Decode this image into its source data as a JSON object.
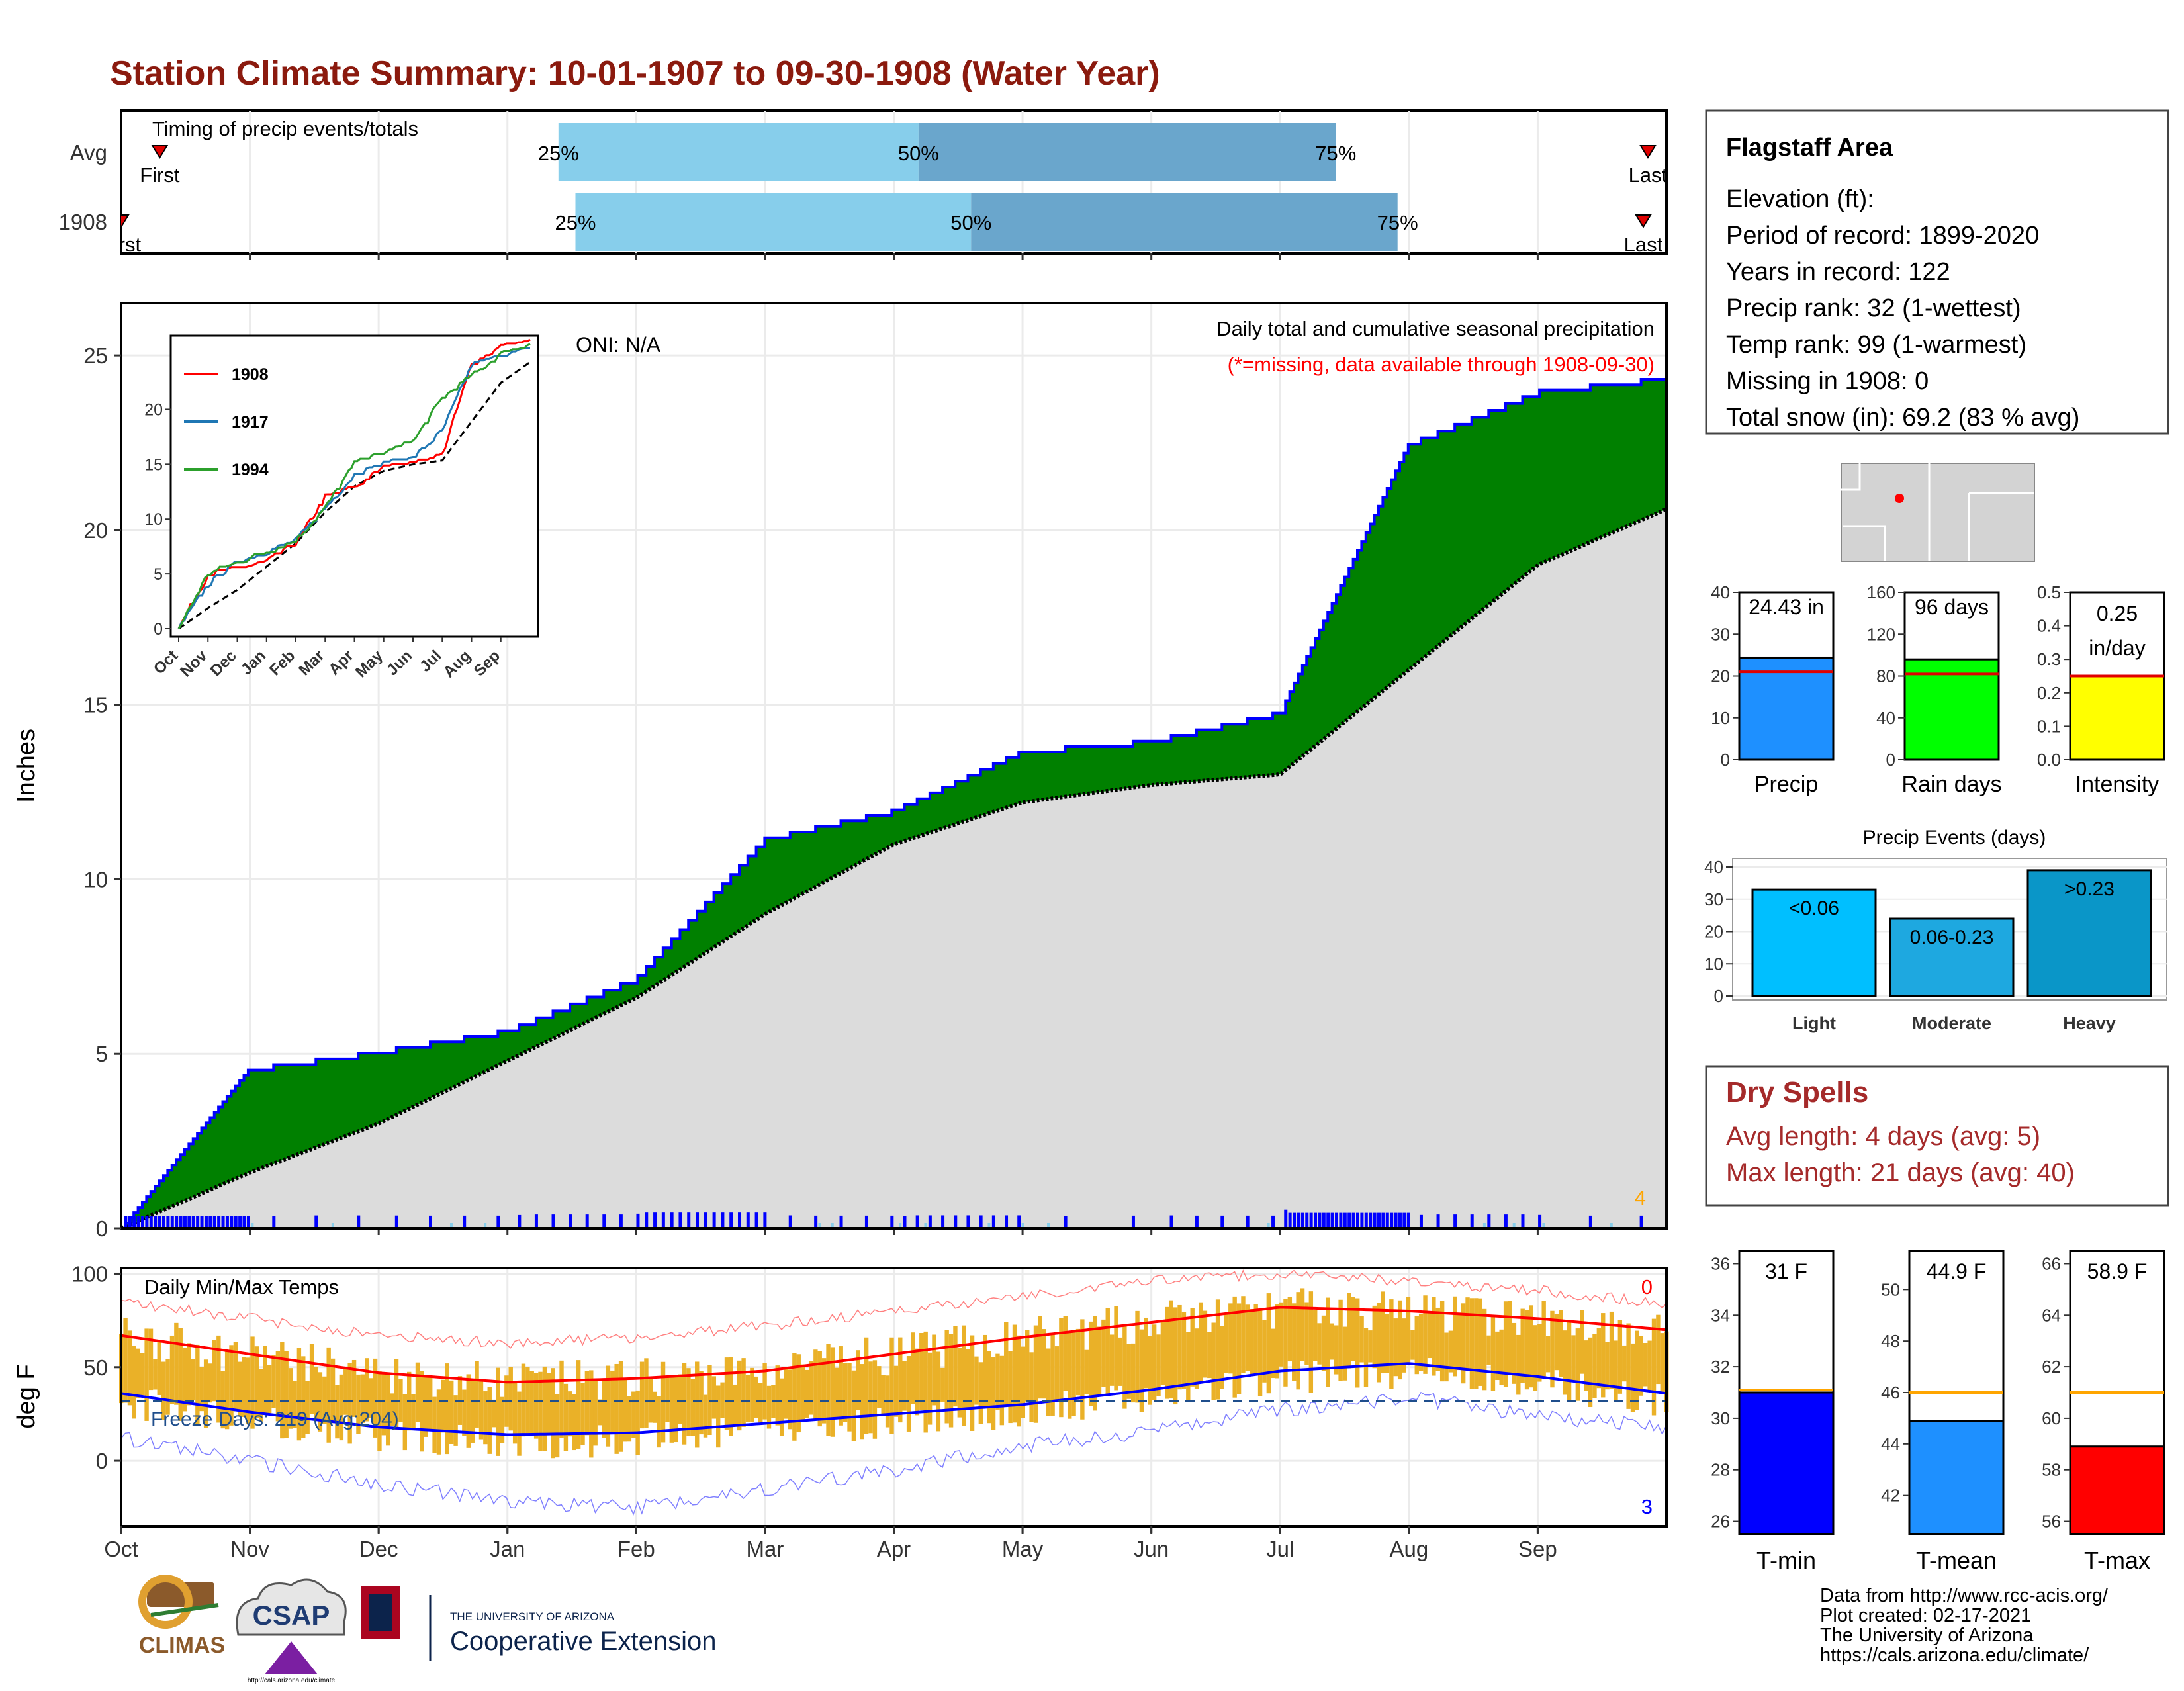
{
  "title": "Station Climate Summary: 10-01-1907 to 09-30-1908 (Water Year)",
  "colors": {
    "title": "#8b1a0e",
    "green": "#008000",
    "blue_line": "#0000ff",
    "grey_fill": "#dcdcdc",
    "bar_light": "#87ceeb",
    "bar_dark": "#6aa6cc",
    "gold": "#eab128",
    "red": "#ff0000",
    "dry_spells": "#a52a2a"
  },
  "timing_panel": {
    "label": "Timing of precip events/totals",
    "rows": [
      {
        "name": "Avg",
        "first_label": "First",
        "last_label": "Last",
        "q25": "25%",
        "q50": "50%",
        "q75": "75%",
        "first_frac": 0.025,
        "last_frac": 0.988,
        "q25_frac": 0.283,
        "q50_frac": 0.516,
        "q75_frac": 0.786
      },
      {
        "name": "1908",
        "first_label": "First",
        "last_label": "Last",
        "q25": "25%",
        "q50": "50%",
        "q75": "75%",
        "first_frac": 0.0,
        "last_frac": 0.985,
        "q25_frac": 0.294,
        "q50_frac": 0.55,
        "q75_frac": 0.826
      }
    ]
  },
  "precip_panel": {
    "title": "Daily total and cumulative seasonal precipitation",
    "subtitle": "(*=missing, data available through 1908-09-30)",
    "oni": "ONI: N/A",
    "ylabel": "Inches",
    "yticks": [
      "0",
      "5",
      "10",
      "15",
      "20",
      "25"
    ],
    "corner_count": "4"
  },
  "inset": {
    "legend": [
      "1908",
      "1917",
      "1994"
    ],
    "yticks": [
      "0",
      "5",
      "10",
      "15",
      "20"
    ],
    "xticks": [
      "Oct",
      "Nov",
      "Dec",
      "Jan",
      "Feb",
      "Mar",
      "Apr",
      "May",
      "Jun",
      "Jul",
      "Aug",
      "Sep"
    ]
  },
  "temp_panel": {
    "label": "Daily Min/Max Temps",
    "freeze": "Freeze Days: 219 (Avg:204)",
    "ylabel": "deg F",
    "yticks": [
      "0",
      "50",
      "100"
    ],
    "count_top": "0",
    "count_bottom": "3"
  },
  "months": [
    "Oct",
    "Nov",
    "Dec",
    "Jan",
    "Feb",
    "Mar",
    "Apr",
    "May",
    "Jun",
    "Jul",
    "Aug",
    "Sep"
  ],
  "station": {
    "name": "Flagstaff Area",
    "lines": [
      "Elevation (ft):",
      "Period of record: 1899-2020",
      "Years in record: 122",
      "Precip rank: 32 (1-wettest)",
      "Temp rank: 99 (1-warmest)",
      "Missing in 1908: 0",
      "Total snow (in): 69.2 (83 % avg)"
    ]
  },
  "summary_bars": [
    {
      "label": "Precip",
      "value_text": "24.43 in",
      "value": 24.43,
      "avg": 21,
      "ymax": 40,
      "yticks": [
        "0",
        "10",
        "20",
        "30",
        "40"
      ],
      "color": "#1e90ff"
    },
    {
      "label": "Rain days",
      "value_text": "96 days",
      "value": 96,
      "avg": 82,
      "ymax": 160,
      "yticks": [
        "0",
        "40",
        "80",
        "120",
        "160"
      ],
      "color": "#00ff00"
    },
    {
      "label": "Intensity",
      "value_text": "0.25",
      "value_text2": "in/day",
      "value": 0.25,
      "avg": 0.25,
      "ymax": 0.5,
      "yticks": [
        "0.0",
        "0.1",
        "0.2",
        "0.3",
        "0.4",
        "0.5"
      ],
      "color": "#ffff00"
    }
  ],
  "events": {
    "title": "Precip Events (days)",
    "yticks": [
      "0",
      "10",
      "20",
      "30",
      "40"
    ],
    "bars": [
      {
        "cat": "Light",
        "label": "<0.06",
        "value": 33,
        "color": "#00bfff"
      },
      {
        "cat": "Moderate",
        "label": "0.06-0.23",
        "value": 24,
        "color": "#1ea8e0"
      },
      {
        "cat": "Heavy",
        "label": ">0.23",
        "value": 39,
        "color": "#0a96c8"
      }
    ]
  },
  "dry_spells": {
    "title": "Dry Spells",
    "lines": [
      "Avg length: 4 days (avg: 5)",
      "Max length: 21 days (avg: 40)"
    ]
  },
  "temp_bars": [
    {
      "label": "T-min",
      "value_text": "31 F",
      "value": 31,
      "avg": 31.1,
      "ymin": 25.5,
      "ymax": 36.5,
      "yticks": [
        "26",
        "28",
        "30",
        "32",
        "34",
        "36"
      ],
      "color": "#0000ff"
    },
    {
      "label": "T-mean",
      "value_text": "44.9 F",
      "value": 44.9,
      "avg": 46,
      "ymin": 40.5,
      "ymax": 51.5,
      "yticks": [
        "42",
        "44",
        "46",
        "48",
        "50"
      ],
      "color": "#1e90ff"
    },
    {
      "label": "T-max",
      "value_text": "58.9 F",
      "value": 58.9,
      "avg": 61,
      "ymin": 55.5,
      "ymax": 66.5,
      "yticks": [
        "56",
        "58",
        "60",
        "62",
        "64",
        "66"
      ],
      "color": "#ff0000"
    }
  ],
  "credits": [
    "Data from http://www.rcc-acis.org/",
    "Plot created: 02-17-2021",
    "The University of Arizona",
    "https://cals.arizona.edu/climate/"
  ],
  "logos": {
    "climas": "CLIMAS",
    "csap": "CSAP",
    "csap_url": "http://cals.arizona.edu/climate",
    "ua_small": "THE UNIVERSITY OF ARIZONA",
    "ua_big": "Cooperative Extension"
  },
  "chart_data": {
    "type": "area",
    "title": "Daily total and cumulative seasonal precipitation",
    "ylabel": "Inches",
    "ylim": [
      0,
      26.5
    ],
    "x": [
      "Oct",
      "Nov",
      "Dec",
      "Jan",
      "Feb",
      "Mar",
      "Apr",
      "May",
      "Jun",
      "Jul",
      "Aug",
      "Sep",
      "Oct"
    ],
    "series": [
      {
        "name": "1908",
        "values": [
          0.0,
          4.6,
          5.1,
          5.7,
          7.2,
          11.2,
          12.0,
          13.7,
          14.0,
          14.8,
          22.5,
          24.0,
          24.4
        ]
      },
      {
        "name": "Avg",
        "values": [
          0.0,
          1.6,
          3.0,
          4.8,
          6.6,
          9.0,
          11.0,
          12.2,
          12.7,
          13.0,
          16.0,
          19.0,
          20.6
        ]
      }
    ],
    "temps": {
      "ylim": [
        -35,
        103
      ],
      "x": [
        "Oct",
        "Nov",
        "Dec",
        "Jan",
        "Feb",
        "Mar",
        "Apr",
        "May",
        "Jun",
        "Jul",
        "Aug",
        "Sep",
        "Oct"
      ],
      "avg_max": [
        67,
        57,
        47,
        42,
        44,
        48,
        57,
        66,
        74,
        82,
        80,
        76,
        70
      ],
      "avg_min": [
        36,
        26,
        18,
        14,
        15,
        20,
        25,
        30,
        38,
        48,
        52,
        45,
        36
      ],
      "rec_max": [
        85,
        76,
        67,
        63,
        66,
        72,
        80,
        88,
        96,
        100,
        96,
        91,
        84
      ],
      "rec_min": [
        12,
        0,
        -12,
        -22,
        -25,
        -15,
        -5,
        8,
        16,
        27,
        34,
        24,
        18
      ],
      "freeze": 32
    }
  }
}
